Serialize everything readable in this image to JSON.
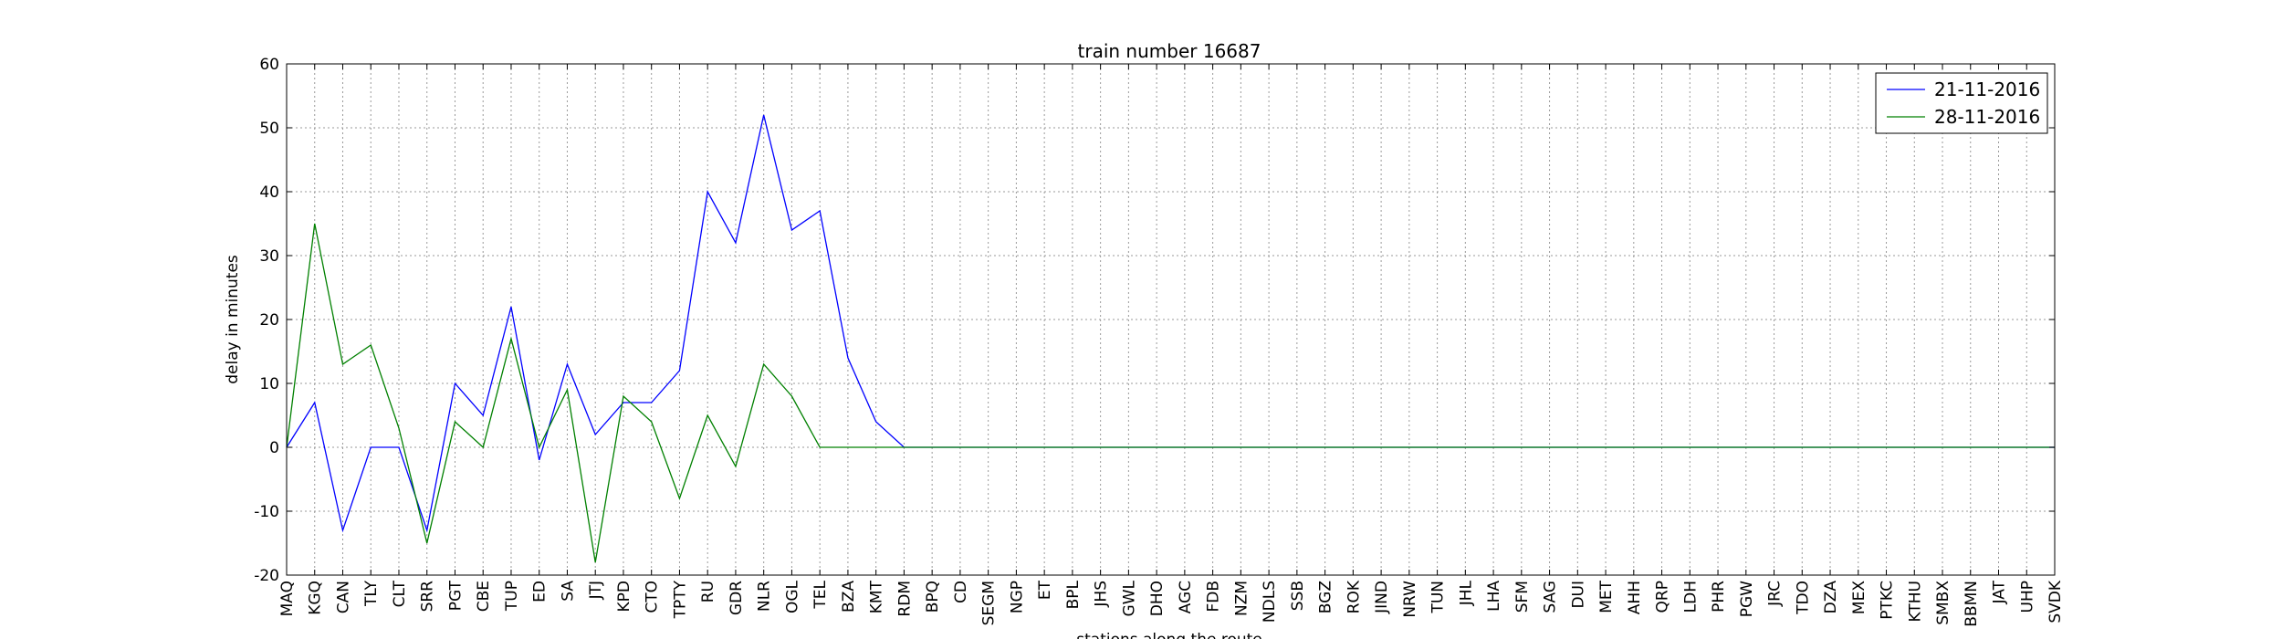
{
  "chart_data": {
    "type": "line",
    "title": "train number 16687",
    "xlabel": "stations along the route",
    "ylabel": "delay in minutes",
    "ylim": [
      -20,
      60
    ],
    "yticks": [
      -20,
      -10,
      0,
      10,
      20,
      30,
      40,
      50,
      60
    ],
    "grid": true,
    "legend_position": "top-right",
    "categories": [
      "MAQ",
      "KGQ",
      "CAN",
      "TLY",
      "CLT",
      "SRR",
      "PGT",
      "CBE",
      "TUP",
      "ED",
      "SA",
      "JTJ",
      "KPD",
      "CTO",
      "TPTY",
      "RU",
      "GDR",
      "NLR",
      "OGL",
      "TEL",
      "BZA",
      "KMT",
      "RDM",
      "BPQ",
      "CD",
      "SEGM",
      "NGP",
      "ET",
      "BPL",
      "JHS",
      "GWL",
      "DHO",
      "AGC",
      "FDB",
      "NZM",
      "NDLS",
      "SSB",
      "BGZ",
      "ROK",
      "JIND",
      "NRW",
      "TUN",
      "JHL",
      "LHA",
      "SFM",
      "SAG",
      "DUI",
      "MET",
      "AHH",
      "QRP",
      "LDH",
      "PHR",
      "PGW",
      "JRC",
      "TDO",
      "DZA",
      "MEX",
      "PTKC",
      "KTHU",
      "SMBX",
      "BBMN",
      "JAT",
      "UHP",
      "SVDK"
    ],
    "series": [
      {
        "name": "21-11-2016",
        "color": "#0000ff",
        "values": [
          0,
          7,
          -13,
          0,
          0,
          -13,
          10,
          5,
          22,
          -2,
          13,
          2,
          7,
          7,
          12,
          40,
          32,
          52,
          34,
          37,
          14,
          4,
          0,
          0,
          0,
          0,
          0,
          0,
          0,
          0,
          0,
          0,
          0,
          0,
          0,
          0,
          0,
          0,
          0,
          0,
          0,
          0,
          0,
          0,
          0,
          0,
          0,
          0,
          0,
          0,
          0,
          0,
          0,
          0,
          0,
          0,
          0,
          0,
          0,
          0,
          0,
          0,
          0,
          0
        ]
      },
      {
        "name": "28-11-2016",
        "color": "#008000",
        "values": [
          0,
          35,
          13,
          16,
          3,
          -15,
          4,
          0,
          17,
          0,
          9,
          -18,
          8,
          4,
          -8,
          5,
          -3,
          13,
          8,
          0,
          0,
          0,
          0,
          0,
          0,
          0,
          0,
          0,
          0,
          0,
          0,
          0,
          0,
          0,
          0,
          0,
          0,
          0,
          0,
          0,
          0,
          0,
          0,
          0,
          0,
          0,
          0,
          0,
          0,
          0,
          0,
          0,
          0,
          0,
          0,
          0,
          0,
          0,
          0,
          0,
          0,
          0,
          0,
          0
        ]
      }
    ]
  }
}
